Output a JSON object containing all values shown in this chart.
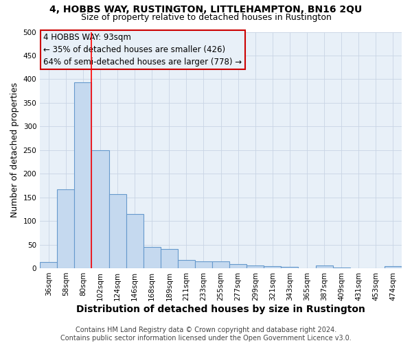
{
  "title": "4, HOBBS WAY, RUSTINGTON, LITTLEHAMPTON, BN16 2QU",
  "subtitle": "Size of property relative to detached houses in Rustington",
  "xlabel": "Distribution of detached houses by size in Rustington",
  "ylabel": "Number of detached properties",
  "categories": [
    "36sqm",
    "58sqm",
    "80sqm",
    "102sqm",
    "124sqm",
    "146sqm",
    "168sqm",
    "189sqm",
    "211sqm",
    "233sqm",
    "255sqm",
    "277sqm",
    "299sqm",
    "321sqm",
    "343sqm",
    "365sqm",
    "387sqm",
    "409sqm",
    "431sqm",
    "453sqm",
    "474sqm"
  ],
  "values": [
    13,
    167,
    393,
    250,
    157,
    115,
    45,
    40,
    18,
    15,
    15,
    9,
    6,
    5,
    3,
    0,
    6,
    1,
    0,
    0,
    5
  ],
  "bar_color": "#c5d9ef",
  "bar_edge_color": "#6699cc",
  "background_color": "#ffffff",
  "plot_bg_color": "#e8f0f8",
  "grid_color": "#c8d4e4",
  "red_line_x": 2.5,
  "annotation_text": "4 HOBBS WAY: 93sqm\n← 35% of detached houses are smaller (426)\n64% of semi-detached houses are larger (778) →",
  "annotation_box_edge": "#cc0000",
  "footer": "Contains HM Land Registry data © Crown copyright and database right 2024.\nContains public sector information licensed under the Open Government Licence v3.0.",
  "ylim": [
    0,
    500
  ],
  "yticks": [
    0,
    50,
    100,
    150,
    200,
    250,
    300,
    350,
    400,
    450,
    500
  ],
  "title_fontsize": 10,
  "subtitle_fontsize": 9,
  "xlabel_fontsize": 10,
  "ylabel_fontsize": 9,
  "tick_fontsize": 7.5,
  "footer_fontsize": 7,
  "annot_fontsize": 8.5
}
